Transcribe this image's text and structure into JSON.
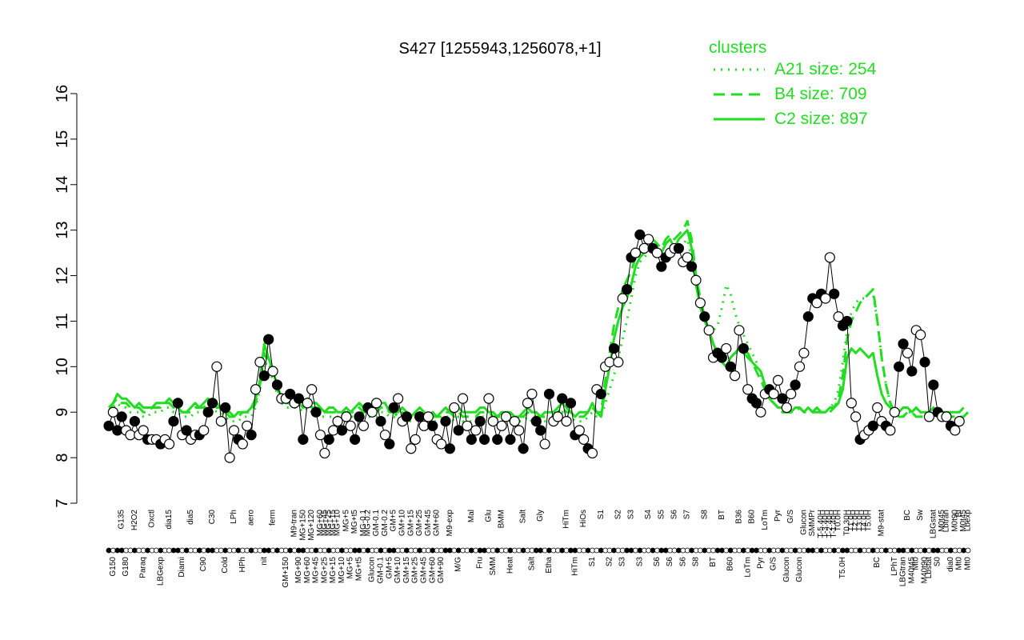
{
  "chart_data": {
    "type": "line",
    "title": "S427 [1255943,1256078,+1]",
    "xlabel": "",
    "ylabel": "",
    "ylim": [
      7,
      16
    ],
    "yticks": [
      7,
      8,
      9,
      10,
      11,
      12,
      13,
      14,
      15,
      16
    ],
    "grid": false,
    "legend": {
      "title": "clusters",
      "position": "top-right",
      "entries": [
        {
          "label": "A21 size: 254",
          "style": "dotted"
        },
        {
          "label": "B4 size: 709",
          "style": "dashed"
        },
        {
          "label": "C2 size: 897",
          "style": "solid"
        }
      ]
    },
    "colors": {
      "series": "#22dd22",
      "points": "#000000"
    },
    "x_count": 200,
    "x_labels_top": [
      {
        "i": 3,
        "t": "G135"
      },
      {
        "i": 6,
        "t": "H2O2"
      },
      {
        "i": 10,
        "t": "Oxctl"
      },
      {
        "i": 14,
        "t": "dia15"
      },
      {
        "i": 19,
        "t": "dia5"
      },
      {
        "i": 24,
        "t": "C30"
      },
      {
        "i": 29,
        "t": "LPh"
      },
      {
        "i": 33,
        "t": "aero"
      },
      {
        "i": 38,
        "t": "ferm"
      },
      {
        "i": 43,
        "t": "M9-tran"
      },
      {
        "i": 45,
        "t": "MG+150"
      },
      {
        "i": 47,
        "t": "MG+120"
      },
      {
        "i": 49,
        "t": "MG+60"
      },
      {
        "i": 50,
        "t": "MG+45"
      },
      {
        "i": 51,
        "t": "MG+25"
      },
      {
        "i": 52,
        "t": "MG+15"
      },
      {
        "i": 53,
        "t": "MG+10"
      },
      {
        "i": 55,
        "t": "MG+5"
      },
      {
        "i": 57,
        "t": "MG+t5"
      },
      {
        "i": 59,
        "t": "MG-0.1"
      },
      {
        "i": 60,
        "t": "MG-0.2"
      },
      {
        "i": 62,
        "t": "GM-0.1"
      },
      {
        "i": 64,
        "t": "GM-0.2"
      },
      {
        "i": 66,
        "t": "GM+5"
      },
      {
        "i": 68,
        "t": "GM+10"
      },
      {
        "i": 70,
        "t": "GM+15"
      },
      {
        "i": 72,
        "t": "GM+25"
      },
      {
        "i": 74,
        "t": "GM+45"
      },
      {
        "i": 76,
        "t": "GM+60"
      },
      {
        "i": 79,
        "t": "M9-exp"
      },
      {
        "i": 84,
        "t": "Mal"
      },
      {
        "i": 88,
        "t": "Glu"
      },
      {
        "i": 91,
        "t": "BMM"
      },
      {
        "i": 96,
        "t": "Salt"
      },
      {
        "i": 100,
        "t": "Gly"
      },
      {
        "i": 106,
        "t": "HiTm"
      },
      {
        "i": 110,
        "t": "HiOs"
      },
      {
        "i": 114,
        "t": "S1"
      },
      {
        "i": 118,
        "t": "S2"
      },
      {
        "i": 121,
        "t": "S3"
      },
      {
        "i": 125,
        "t": "S4"
      },
      {
        "i": 128,
        "t": "S5"
      },
      {
        "i": 131,
        "t": "S6"
      },
      {
        "i": 134,
        "t": "S7"
      },
      {
        "i": 138,
        "t": "S8"
      },
      {
        "i": 142,
        "t": "BT"
      },
      {
        "i": 146,
        "t": "B36"
      },
      {
        "i": 149,
        "t": "B60"
      },
      {
        "i": 152,
        "t": "LoTm"
      },
      {
        "i": 155,
        "t": "Pyr"
      },
      {
        "i": 158,
        "t": "G/S"
      },
      {
        "i": 161,
        "t": "Glucon"
      },
      {
        "i": 163,
        "t": "SMMPr"
      },
      {
        "i": 165,
        "t": "T-5.40H"
      },
      {
        "i": 166,
        "t": "T-3.40H"
      },
      {
        "i": 167,
        "t": "T-2.40H"
      },
      {
        "i": 168,
        "t": "T-1.40H"
      },
      {
        "i": 169,
        "t": "T0.0H"
      },
      {
        "i": 171,
        "t": "T0.30H"
      },
      {
        "i": 172,
        "t": "T1.0H"
      },
      {
        "i": 173,
        "t": "T2.0H"
      },
      {
        "i": 174,
        "t": "T3.0H"
      },
      {
        "i": 175,
        "t": "T4.0H"
      },
      {
        "i": 176,
        "t": "T5.0H"
      },
      {
        "i": 179,
        "t": "M9-stat"
      },
      {
        "i": 185,
        "t": "BC"
      },
      {
        "i": 188,
        "t": "Sw"
      },
      {
        "i": 191,
        "t": "LBGstat"
      },
      {
        "i": 193,
        "t": "M0t45"
      },
      {
        "i": 194,
        "t": "Lbtran"
      },
      {
        "i": 196,
        "t": "M0t90"
      },
      {
        "i": 197,
        "t": "BI"
      },
      {
        "i": 198,
        "t": "M0t45"
      },
      {
        "i": 199,
        "t": "Lbexp"
      }
    ],
    "x_labels_bottom": [
      {
        "i": 1,
        "t": "G150"
      },
      {
        "i": 4,
        "t": "G180"
      },
      {
        "i": 8,
        "t": "Paraq"
      },
      {
        "i": 12,
        "t": "LBGexp"
      },
      {
        "i": 17,
        "t": "Diami"
      },
      {
        "i": 22,
        "t": "C90"
      },
      {
        "i": 27,
        "t": "Cold"
      },
      {
        "i": 31,
        "t": "HPh"
      },
      {
        "i": 36,
        "t": "nit"
      },
      {
        "i": 41,
        "t": "GM+150"
      },
      {
        "i": 44,
        "t": "MG+90"
      },
      {
        "i": 46,
        "t": "MG+60"
      },
      {
        "i": 48,
        "t": "MG+45"
      },
      {
        "i": 50,
        "t": "MG+25"
      },
      {
        "i": 52,
        "t": "MG+15"
      },
      {
        "i": 54,
        "t": "MG+10"
      },
      {
        "i": 56,
        "t": "MG+5"
      },
      {
        "i": 58,
        "t": "MG+t5"
      },
      {
        "i": 61,
        "t": "Glucon"
      },
      {
        "i": 63,
        "t": "GM-0.1"
      },
      {
        "i": 65,
        "t": "GM+5"
      },
      {
        "i": 67,
        "t": "GM+10"
      },
      {
        "i": 69,
        "t": "GM+15"
      },
      {
        "i": 71,
        "t": "GM+25"
      },
      {
        "i": 73,
        "t": "GM+45"
      },
      {
        "i": 75,
        "t": "GM+60"
      },
      {
        "i": 77,
        "t": "GM+90"
      },
      {
        "i": 81,
        "t": "M/G"
      },
      {
        "i": 86,
        "t": "Fru"
      },
      {
        "i": 89,
        "t": "SMM"
      },
      {
        "i": 93,
        "t": "Heat"
      },
      {
        "i": 98,
        "t": "Salt"
      },
      {
        "i": 102,
        "t": "Etha"
      },
      {
        "i": 108,
        "t": "HiTm"
      },
      {
        "i": 112,
        "t": "S1"
      },
      {
        "i": 116,
        "t": "S2"
      },
      {
        "i": 119,
        "t": "S3"
      },
      {
        "i": 123,
        "t": "S3"
      },
      {
        "i": 127,
        "t": "S6"
      },
      {
        "i": 130,
        "t": "S6"
      },
      {
        "i": 133,
        "t": "S6"
      },
      {
        "i": 136,
        "t": "S8"
      },
      {
        "i": 140,
        "t": "BT"
      },
      {
        "i": 144,
        "t": "B60"
      },
      {
        "i": 148,
        "t": "LoTm"
      },
      {
        "i": 151,
        "t": "Pyr"
      },
      {
        "i": 154,
        "t": "G/S"
      },
      {
        "i": 157,
        "t": "Glucon"
      },
      {
        "i": 160,
        "t": "Glucon"
      },
      {
        "i": 170,
        "t": "T5.0H"
      },
      {
        "i": 178,
        "t": "BC"
      },
      {
        "i": 182,
        "t": "LPhT"
      },
      {
        "i": 184,
        "t": "LBGtran"
      },
      {
        "i": 186,
        "t": "M40t45"
      },
      {
        "i": 187,
        "t": "Mt0"
      },
      {
        "i": 189,
        "t": "M40t90"
      },
      {
        "i": 190,
        "t": "Lbstat"
      },
      {
        "i": 192,
        "t": "S0"
      },
      {
        "i": 195,
        "t": "dia0"
      },
      {
        "i": 197,
        "t": "Mt0"
      },
      {
        "i": 199,
        "t": "Mt0"
      }
    ],
    "series": [
      {
        "style": "solid",
        "values": [
          9.0,
          9.2,
          9.4,
          9.3,
          9.3,
          9.2,
          9.1,
          9.2,
          9.1,
          9.1,
          9.1,
          9.2,
          9.2,
          9.2,
          9.3,
          9.2,
          9.1,
          9.0,
          9.0,
          9.1,
          9.2,
          9.1,
          9.2,
          9.3,
          9.2,
          9.2,
          9.1,
          9.0,
          9.0,
          8.9,
          9.0,
          9.0,
          9.0,
          9.1,
          9.3,
          9.7,
          10.5,
          10.2,
          9.9,
          9.6,
          9.3,
          9.2,
          9.2,
          9.3,
          9.3,
          9.2,
          9.3,
          9.2,
          9.2,
          9.1,
          9.0,
          9.1,
          9.1,
          9.0,
          9.0,
          9.1,
          9.0,
          9.1,
          9.2,
          9.1,
          9.0,
          9.0,
          9.1,
          9.2,
          9.2,
          9.0,
          9.0,
          9.0,
          9.1,
          9.0,
          8.9,
          9.0,
          9.1,
          9.0,
          8.9,
          9.0,
          8.9,
          9.0,
          9.1,
          9.0,
          9.0,
          9.1,
          9.0,
          9.0,
          9.0,
          9.0,
          9.1,
          9.1,
          9.0,
          9.0,
          8.9,
          9.0,
          9.0,
          9.0,
          8.9,
          8.9,
          9.0,
          9.1,
          9.0,
          9.0,
          8.9,
          9.0,
          9.0,
          9.0,
          9.1,
          9.2,
          9.1,
          9.0,
          8.9,
          9.0,
          9.0,
          9.0,
          9.2,
          9.0,
          8.9,
          9.5,
          10.0,
          10.6,
          11.0,
          11.3,
          11.5,
          11.8,
          12.2,
          12.4,
          12.5,
          12.6,
          12.7,
          12.6,
          12.5,
          12.7,
          12.8,
          12.6,
          12.8,
          12.9,
          13.0,
          12.6,
          11.8,
          11.3,
          11.0,
          10.8,
          10.5,
          10.3,
          10.1,
          10.0,
          10.2,
          10.3,
          10.4,
          10.4,
          10.3,
          10.1,
          10.0,
          9.9,
          9.6,
          9.3,
          9.2,
          9.1,
          9.1,
          9.0,
          9.0,
          9.1,
          9.1,
          9.0,
          9.1,
          9.0,
          9.1,
          9.0,
          9.0,
          9.1,
          9.1,
          9.2,
          9.5,
          10.2,
          10.4,
          10.3,
          10.4,
          10.3,
          10.2,
          10.3,
          9.8,
          9.4,
          9.2,
          9.1,
          9.0,
          9.0,
          9.1,
          9.1,
          9.0,
          9.1,
          9.0,
          9.0,
          9.0,
          9.1,
          9.0,
          9.0,
          9.0,
          9.0,
          9.0,
          9.0,
          9.1
        ]
      },
      {
        "style": "dashed",
        "values": [
          9.1,
          9.2,
          9.3,
          9.2,
          9.2,
          9.1,
          9.1,
          9.1,
          9.0,
          9.0,
          9.1,
          9.1,
          9.1,
          9.2,
          9.2,
          9.1,
          9.1,
          9.0,
          9.0,
          9.0,
          9.1,
          9.1,
          9.1,
          9.2,
          9.2,
          9.1,
          9.1,
          9.0,
          8.9,
          8.9,
          8.9,
          9.0,
          9.0,
          9.0,
          9.2,
          9.6,
          10.3,
          10.1,
          9.8,
          9.5,
          9.3,
          9.2,
          9.2,
          9.2,
          9.2,
          9.1,
          9.2,
          9.1,
          9.1,
          9.0,
          9.0,
          9.0,
          9.0,
          9.0,
          9.0,
          9.0,
          9.0,
          9.0,
          9.1,
          9.0,
          9.0,
          9.0,
          9.0,
          9.1,
          9.1,
          9.0,
          9.0,
          8.9,
          9.0,
          8.9,
          8.9,
          8.9,
          9.0,
          8.9,
          8.9,
          8.9,
          8.9,
          8.9,
          9.0,
          9.0,
          8.9,
          9.0,
          8.9,
          8.9,
          8.9,
          8.9,
          9.0,
          9.0,
          9.0,
          8.9,
          8.9,
          8.9,
          8.9,
          8.9,
          8.8,
          8.9,
          8.9,
          9.0,
          8.9,
          8.9,
          8.9,
          8.9,
          8.9,
          8.9,
          9.0,
          9.1,
          9.0,
          9.0,
          8.9,
          8.9,
          8.9,
          9.0,
          9.1,
          9.0,
          9.0,
          9.7,
          10.3,
          10.9,
          11.3,
          11.7,
          11.9,
          12.1,
          12.4,
          12.5,
          12.6,
          12.7,
          12.8,
          12.7,
          12.6,
          12.8,
          12.9,
          12.8,
          12.9,
          13.0,
          13.2,
          12.8,
          12.0,
          11.5,
          11.1,
          10.8,
          10.5,
          10.3,
          10.2,
          10.1,
          10.2,
          10.3,
          10.3,
          10.3,
          10.2,
          10.1,
          9.9,
          9.7,
          9.5,
          9.3,
          9.2,
          9.1,
          9.0,
          9.0,
          9.0,
          9.0,
          9.1,
          9.0,
          9.0,
          9.0,
          9.0,
          9.0,
          9.0,
          9.0,
          9.1,
          9.3,
          9.8,
          10.6,
          11.0,
          11.2,
          11.4,
          11.5,
          11.6,
          11.7,
          11.0,
          10.2,
          9.6,
          9.2,
          9.0,
          8.9,
          8.9,
          9.0,
          9.0,
          8.9,
          8.9,
          8.9,
          8.9,
          8.9,
          9.0,
          8.9,
          8.9,
          8.9,
          8.9,
          8.9,
          8.9,
          9.0
        ]
      },
      {
        "style": "dotted",
        "values": [
          9.0,
          9.1,
          9.2,
          9.1,
          9.1,
          9.0,
          9.0,
          9.0,
          8.9,
          8.9,
          9.0,
          9.0,
          9.0,
          9.1,
          9.1,
          9.0,
          9.0,
          8.9,
          8.9,
          8.9,
          9.0,
          9.0,
          9.0,
          9.1,
          9.1,
          9.0,
          9.0,
          8.9,
          8.8,
          8.8,
          8.8,
          8.9,
          8.9,
          8.9,
          9.1,
          9.5,
          10.1,
          10.0,
          9.7,
          9.4,
          9.2,
          9.1,
          9.1,
          9.1,
          9.1,
          9.0,
          9.1,
          9.0,
          9.0,
          8.9,
          8.9,
          8.9,
          8.9,
          8.9,
          8.9,
          8.9,
          8.9,
          8.9,
          9.0,
          8.9,
          8.9,
          8.9,
          8.9,
          9.0,
          9.0,
          8.9,
          8.9,
          8.8,
          8.9,
          8.8,
          8.8,
          8.8,
          8.9,
          8.8,
          8.8,
          8.8,
          8.8,
          8.8,
          8.9,
          8.9,
          8.8,
          8.9,
          8.8,
          8.8,
          8.8,
          8.8,
          8.9,
          8.9,
          8.9,
          8.8,
          8.8,
          8.8,
          8.8,
          8.8,
          8.7,
          8.8,
          8.8,
          8.9,
          8.8,
          8.8,
          8.8,
          8.8,
          8.8,
          8.8,
          8.9,
          9.0,
          8.9,
          8.9,
          8.8,
          8.8,
          8.8,
          8.9,
          9.0,
          8.9,
          8.9,
          9.2,
          9.5,
          9.8,
          10.2,
          10.6,
          11.0,
          11.5,
          12.0,
          12.3,
          12.4,
          12.5,
          12.6,
          12.5,
          12.4,
          12.5,
          12.6,
          12.5,
          12.6,
          12.7,
          12.8,
          12.4,
          11.8,
          11.4,
          11.1,
          10.9,
          10.8,
          10.9,
          11.3,
          11.8,
          11.6,
          11.2,
          10.9,
          10.7,
          10.5,
          10.3,
          10.1,
          9.8,
          9.5,
          9.3,
          9.2,
          9.1,
          9.1,
          9.0,
          9.0,
          9.1,
          9.1,
          9.0,
          9.1,
          9.0,
          9.1,
          9.0,
          9.0,
          9.1,
          9.2,
          9.5,
          10.1,
          10.8,
          11.2,
          11.4,
          11.5,
          11.5,
          11.6,
          11.6,
          11.0,
          10.2,
          9.6,
          9.2,
          9.0,
          8.9,
          8.9,
          9.0,
          9.0,
          8.9,
          8.9,
          8.9,
          8.9,
          8.9,
          9.0,
          8.9,
          8.9,
          8.9,
          8.9,
          8.9,
          8.9,
          9.0
        ]
      }
    ],
    "points": [
      8.7,
      9.0,
      8.6,
      8.9,
      8.6,
      8.5,
      8.8,
      8.5,
      8.6,
      8.4,
      8.4,
      8.4,
      8.3,
      8.4,
      8.3,
      8.8,
      9.2,
      8.5,
      8.6,
      8.4,
      8.5,
      8.5,
      8.6,
      9.0,
      9.2,
      10.0,
      8.8,
      9.1,
      8.0,
      8.6,
      8.4,
      8.3,
      8.7,
      8.5,
      9.5,
      10.1,
      9.8,
      10.6,
      9.9,
      9.6,
      9.3,
      9.3,
      9.4,
      9.2,
      9.3,
      8.4,
      9.2,
      9.5,
      9.0,
      8.5,
      8.1,
      8.4,
      8.6,
      8.8,
      8.6,
      8.9,
      8.7,
      8.4,
      8.9,
      8.7,
      9.1,
      9.0,
      9.2,
      8.8,
      8.5,
      8.3,
      9.1,
      9.3,
      8.8,
      8.9,
      8.2,
      8.4,
      8.9,
      8.7,
      8.9,
      8.7,
      8.4,
      8.3,
      8.8,
      8.2,
      9.1,
      8.6,
      9.3,
      8.7,
      8.4,
      8.6,
      8.8,
      8.4,
      9.3,
      8.8,
      8.4,
      8.7,
      8.9,
      8.4,
      8.8,
      8.6,
      8.2,
      9.2,
      9.4,
      8.8,
      8.6,
      8.3,
      9.4,
      8.8,
      8.9,
      9.3,
      8.8,
      9.2,
      8.5,
      8.6,
      8.4,
      8.2,
      8.1,
      9.5,
      9.4,
      10.0,
      10.1,
      10.4,
      10.1,
      11.5,
      11.7,
      12.4,
      12.5,
      12.9,
      12.6,
      12.8,
      12.6,
      12.5,
      12.2,
      12.4,
      12.5,
      12.6,
      12.6,
      12.3,
      12.4,
      12.2,
      11.9,
      11.4,
      11.1,
      10.8,
      10.2,
      10.3,
      10.2,
      10.4,
      10.0,
      9.8,
      10.8,
      10.4,
      9.5,
      9.3,
      9.2,
      9.0,
      9.4,
      9.5,
      9.4,
      9.7,
      9.3,
      9.1,
      9.4,
      9.6,
      10.0,
      10.3,
      11.1,
      11.5,
      11.4,
      11.6,
      11.5,
      12.4,
      11.6,
      11.1,
      10.9,
      11.0,
      9.2,
      8.9,
      8.4,
      8.5,
      8.6,
      8.7,
      9.1,
      8.8,
      8.7,
      8.6,
      9.0,
      10.0,
      10.5,
      10.3,
      9.9,
      10.8,
      10.7,
      10.1,
      8.9,
      9.6,
      9.0,
      8.9,
      8.9,
      8.7,
      8.6,
      8.8
    ]
  }
}
